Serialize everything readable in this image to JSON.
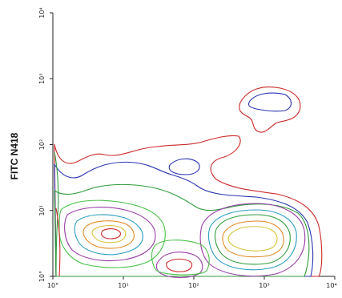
{
  "chart_data": {
    "type": "contour",
    "title": "",
    "xlabel": "",
    "ylabel": "FITC N418",
    "x_scale": "log",
    "y_scale": "log",
    "xlim": [
      1,
      10000
    ],
    "ylim": [
      1,
      10000
    ],
    "x_ticks": [
      "10°",
      "10¹",
      "10²",
      "10³",
      "10⁴"
    ],
    "y_ticks": [
      "10⁴",
      "10³",
      "10²",
      "10¹",
      "10°"
    ],
    "y_tick_values": [
      10000,
      1000,
      100,
      10,
      1
    ],
    "x_tick_values": [
      1,
      10,
      100,
      1000,
      10000
    ],
    "populations": [
      {
        "name_hint": "left cluster",
        "x_center": 10,
        "y_center": 4
      },
      {
        "name_hint": "right cluster",
        "x_center": 1000,
        "y_center": 4
      },
      {
        "name_hint": "lower middle",
        "x_center": 100,
        "y_center": 1.3
      },
      {
        "name_hint": "upper right",
        "x_center": 1300,
        "y_center": 420
      }
    ],
    "contour_colors": [
      "#cc2a2a",
      "#2a34b0",
      "#2f9b3b",
      "#4cc04c",
      "#9a3ea8",
      "#e08a2a",
      "#2a9ec0",
      "#d4c23a"
    ]
  }
}
